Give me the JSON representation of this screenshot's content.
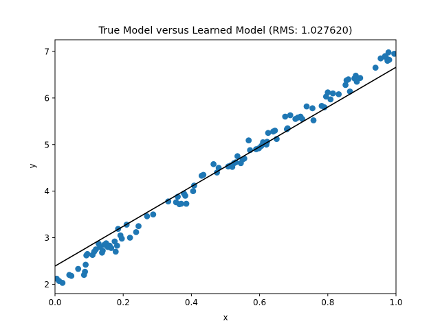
{
  "chart_data": {
    "type": "scatter",
    "title": "True Model versus Learned Model (RMS: 1.027620)",
    "xlabel": "x",
    "ylabel": "y",
    "xlim": [
      0.0,
      1.0
    ],
    "ylim": [
      1.8,
      7.25
    ],
    "xticks": [
      0.0,
      0.2,
      0.4,
      0.6,
      0.8,
      1.0
    ],
    "xtick_labels": [
      "0.0",
      "0.2",
      "0.4",
      "0.6",
      "0.8",
      "1.0"
    ],
    "yticks": [
      2,
      3,
      4,
      5,
      6,
      7
    ],
    "ytick_labels": [
      "2",
      "3",
      "4",
      "5",
      "6",
      "7"
    ],
    "grid": false,
    "legend": "none",
    "colors": {
      "points": "#1f77b4",
      "line": "#000000"
    },
    "line": {
      "x": [
        0.0,
        1.0
      ],
      "y": [
        2.39,
        6.66
      ]
    },
    "points": {
      "x": [
        0.005,
        0.012,
        0.022,
        0.042,
        0.048,
        0.068,
        0.085,
        0.088,
        0.09,
        0.092,
        0.095,
        0.11,
        0.115,
        0.12,
        0.128,
        0.132,
        0.138,
        0.14,
        0.145,
        0.15,
        0.155,
        0.16,
        0.165,
        0.175,
        0.178,
        0.182,
        0.185,
        0.192,
        0.196,
        0.21,
        0.22,
        0.238,
        0.245,
        0.27,
        0.288,
        0.332,
        0.355,
        0.36,
        0.365,
        0.37,
        0.378,
        0.382,
        0.385,
        0.405,
        0.408,
        0.43,
        0.435,
        0.465,
        0.475,
        0.48,
        0.508,
        0.515,
        0.52,
        0.525,
        0.53,
        0.535,
        0.545,
        0.55,
        0.555,
        0.568,
        0.572,
        0.59,
        0.598,
        0.605,
        0.61,
        0.62,
        0.622,
        0.625,
        0.64,
        0.645,
        0.65,
        0.675,
        0.68,
        0.682,
        0.69,
        0.705,
        0.712,
        0.72,
        0.725,
        0.738,
        0.755,
        0.758,
        0.782,
        0.79,
        0.795,
        0.8,
        0.808,
        0.815,
        0.832,
        0.852,
        0.855,
        0.86,
        0.865,
        0.878,
        0.882,
        0.885,
        0.895,
        0.94,
        0.955,
        0.968,
        0.97,
        0.975,
        0.978,
        0.98,
        0.995
      ],
      "y": [
        2.12,
        2.07,
        2.03,
        2.2,
        2.18,
        2.33,
        2.2,
        2.27,
        2.42,
        2.62,
        2.65,
        2.63,
        2.7,
        2.75,
        2.87,
        2.8,
        2.68,
        2.72,
        2.85,
        2.88,
        2.8,
        2.83,
        2.78,
        2.92,
        2.7,
        2.83,
        3.19,
        3.05,
        2.98,
        3.28,
        3.0,
        3.12,
        3.25,
        3.46,
        3.5,
        3.78,
        3.76,
        3.88,
        3.72,
        3.73,
        3.95,
        3.9,
        3.73,
        4.0,
        4.12,
        4.33,
        4.35,
        4.58,
        4.4,
        4.5,
        4.53,
        4.55,
        4.52,
        4.6,
        4.62,
        4.75,
        4.6,
        4.68,
        4.7,
        5.09,
        4.88,
        4.9,
        4.92,
        4.97,
        5.05,
        5.0,
        5.06,
        5.25,
        5.28,
        5.3,
        5.12,
        5.6,
        5.33,
        5.35,
        5.63,
        5.55,
        5.58,
        5.6,
        5.55,
        5.82,
        5.78,
        5.52,
        5.83,
        5.8,
        6.03,
        6.12,
        5.97,
        6.1,
        6.08,
        6.28,
        6.38,
        6.4,
        6.14,
        6.42,
        6.48,
        6.35,
        6.43,
        6.65,
        6.85,
        6.9,
        6.88,
        6.8,
        6.98,
        6.82,
        6.95
      ]
    }
  }
}
